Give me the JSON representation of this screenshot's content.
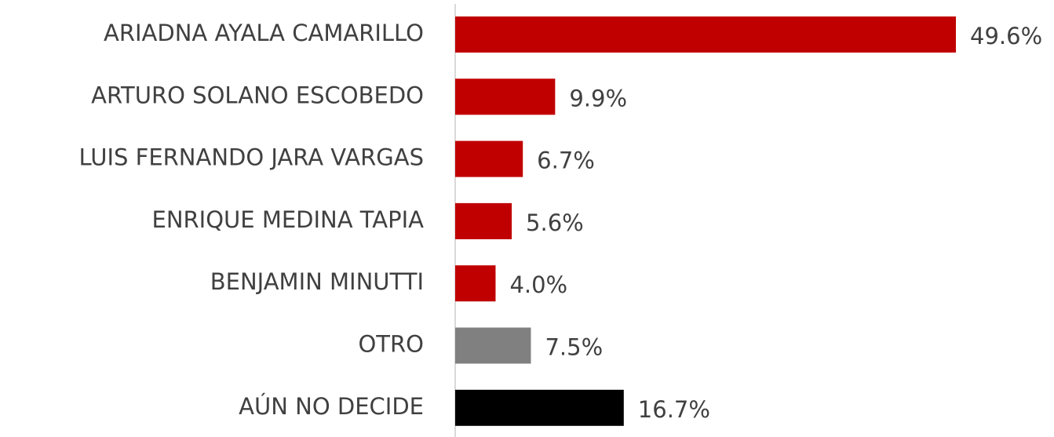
{
  "chart_data": {
    "type": "hbar",
    "categories": [
      "ARIADNA AYALA CAMARILLO",
      "ARTURO SOLANO ESCOBEDO",
      "LUIS FERNANDO JARA VARGAS",
      "ENRIQUE MEDINA TAPIA",
      "BENJAMIN MINUTTI",
      "OTRO",
      "AÚN NO DECIDE"
    ],
    "values": [
      49.6,
      9.9,
      6.7,
      5.6,
      4.0,
      7.5,
      16.7
    ],
    "value_labels": [
      "49.6%",
      "9.9%",
      "6.7%",
      "5.6%",
      "4.0%",
      "7.5%",
      "16.7%"
    ],
    "colors": [
      "#c00000",
      "#c00000",
      "#c00000",
      "#c00000",
      "#c00000",
      "#808080",
      "#000000"
    ]
  }
}
